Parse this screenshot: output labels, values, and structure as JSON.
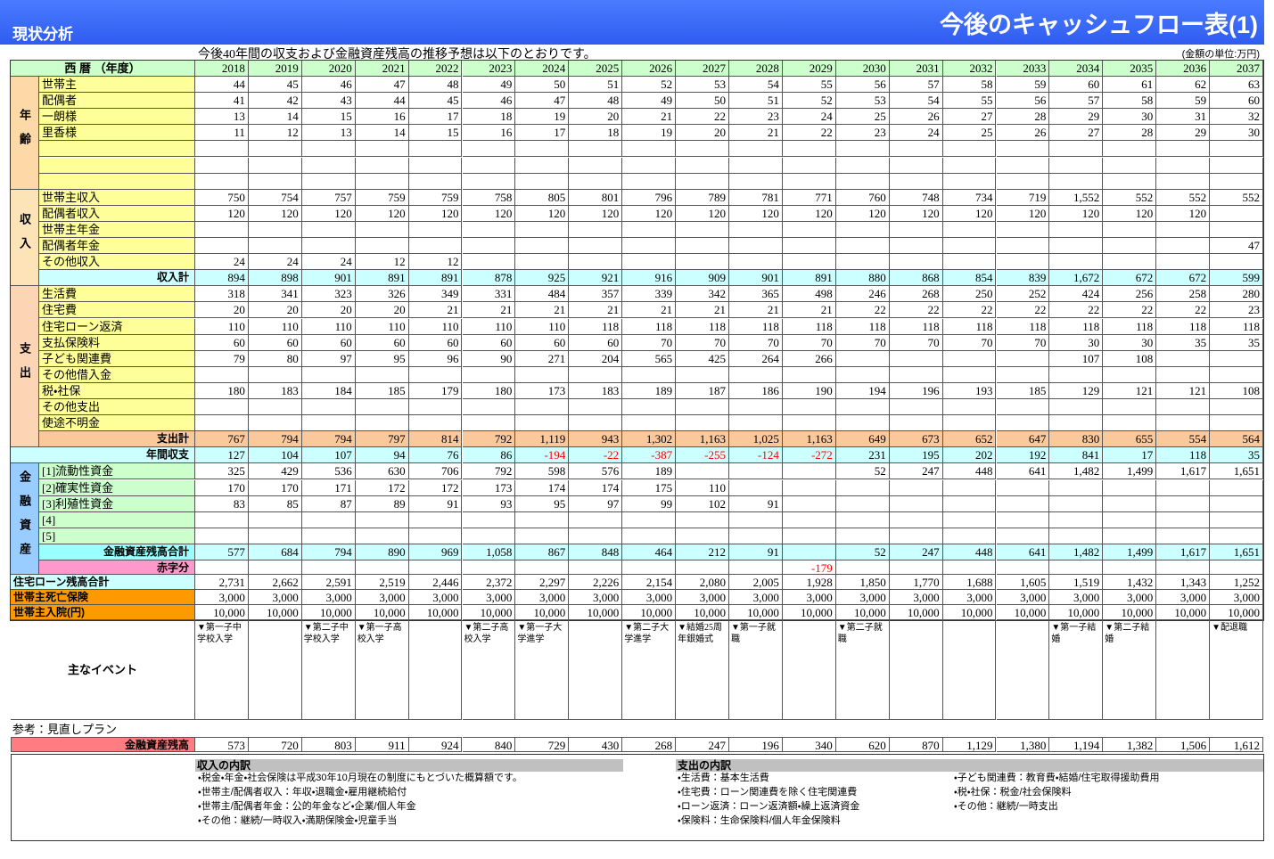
{
  "header": {
    "left": "現状分析",
    "right": "今後のキャッシュフロー表(1)"
  },
  "intro": "今後40年間の収支および金融資産残高の推移予想は以下のとおりです。",
  "unit": "(金額の単位:万円)",
  "table": {
    "year_header": "西 暦 （年度）",
    "years": [
      2018,
      2019,
      2020,
      2021,
      2022,
      2023,
      2024,
      2025,
      2026,
      2027,
      2028,
      2029,
      2030,
      2031,
      2032,
      2033,
      2034,
      2035,
      2036,
      2037
    ],
    "age": {
      "label": "年齢",
      "rows": [
        {
          "label": "世帯主",
          "values": [
            44,
            45,
            46,
            47,
            48,
            49,
            50,
            51,
            52,
            53,
            54,
            55,
            56,
            57,
            58,
            59,
            60,
            61,
            62,
            63
          ]
        },
        {
          "label": "配偶者",
          "values": [
            41,
            42,
            43,
            44,
            45,
            46,
            47,
            48,
            49,
            50,
            51,
            52,
            53,
            54,
            55,
            56,
            57,
            58,
            59,
            60
          ]
        },
        {
          "label": "一朗様",
          "values": [
            13,
            14,
            15,
            16,
            17,
            18,
            19,
            20,
            21,
            22,
            23,
            24,
            25,
            26,
            27,
            28,
            29,
            30,
            31,
            32
          ]
        },
        {
          "label": "里香様",
          "values": [
            11,
            12,
            13,
            14,
            15,
            16,
            17,
            18,
            19,
            20,
            21,
            22,
            23,
            24,
            25,
            26,
            27,
            28,
            29,
            30
          ]
        },
        {
          "label": null,
          "values": [
            null,
            null,
            null,
            null,
            null,
            null,
            null,
            null,
            null,
            null,
            null,
            null,
            null,
            null,
            null,
            null,
            null,
            null,
            null,
            null
          ]
        },
        {
          "label": null,
          "values": [
            null,
            null,
            null,
            null,
            null,
            null,
            null,
            null,
            null,
            null,
            null,
            null,
            null,
            null,
            null,
            null,
            null,
            null,
            null,
            null
          ]
        },
        {
          "label": null,
          "values": [
            null,
            null,
            null,
            null,
            null,
            null,
            null,
            null,
            null,
            null,
            null,
            null,
            null,
            null,
            null,
            null,
            null,
            null,
            null,
            null
          ]
        }
      ]
    },
    "income": {
      "label": "収入",
      "rows": [
        {
          "label": "世帯主収入",
          "values": [
            750,
            754,
            757,
            759,
            759,
            758,
            805,
            801,
            796,
            789,
            781,
            771,
            760,
            748,
            734,
            719,
            "1,552",
            552,
            552,
            552
          ]
        },
        {
          "label": "配偶者収入",
          "values": [
            120,
            120,
            120,
            120,
            120,
            120,
            120,
            120,
            120,
            120,
            120,
            120,
            120,
            120,
            120,
            120,
            120,
            120,
            120,
            null
          ]
        },
        {
          "label": "世帯主年金",
          "values": [
            null,
            null,
            null,
            null,
            null,
            null,
            null,
            null,
            null,
            null,
            null,
            null,
            null,
            null,
            null,
            null,
            null,
            null,
            null,
            null
          ]
        },
        {
          "label": "配偶者年金",
          "values": [
            null,
            null,
            null,
            null,
            null,
            null,
            null,
            null,
            null,
            null,
            null,
            null,
            null,
            null,
            null,
            null,
            null,
            null,
            null,
            47
          ]
        },
        {
          "label": "その他収入",
          "values": [
            24,
            24,
            24,
            12,
            12,
            null,
            null,
            null,
            null,
            null,
            null,
            null,
            null,
            null,
            null,
            null,
            null,
            null,
            null,
            null
          ]
        }
      ],
      "total": {
        "label": "収入計",
        "values": [
          894,
          898,
          901,
          891,
          891,
          878,
          925,
          921,
          916,
          909,
          901,
          891,
          880,
          868,
          854,
          839,
          "1,672",
          672,
          672,
          599
        ]
      }
    },
    "expense": {
      "label": "支出",
      "rows": [
        {
          "label": "生活費",
          "values": [
            318,
            341,
            323,
            326,
            349,
            331,
            484,
            357,
            339,
            342,
            365,
            498,
            246,
            268,
            250,
            252,
            424,
            256,
            258,
            280
          ]
        },
        {
          "label": "住宅費",
          "values": [
            20,
            20,
            20,
            20,
            21,
            21,
            21,
            21,
            21,
            21,
            21,
            21,
            22,
            22,
            22,
            22,
            22,
            22,
            22,
            23
          ]
        },
        {
          "label": "住宅ローン返済",
          "values": [
            110,
            110,
            110,
            110,
            110,
            110,
            110,
            118,
            118,
            118,
            118,
            118,
            118,
            118,
            118,
            118,
            118,
            118,
            118,
            118
          ]
        },
        {
          "label": "支払保険料",
          "values": [
            60,
            60,
            60,
            60,
            60,
            60,
            60,
            60,
            70,
            70,
            70,
            70,
            70,
            70,
            70,
            70,
            30,
            30,
            35,
            35
          ]
        },
        {
          "label": "子ども関連費",
          "values": [
            79,
            80,
            97,
            95,
            96,
            90,
            271,
            204,
            565,
            425,
            264,
            266,
            null,
            null,
            null,
            null,
            107,
            108,
            null,
            null
          ]
        },
        {
          "label": "その他借入金",
          "values": [
            null,
            null,
            null,
            null,
            null,
            null,
            null,
            null,
            null,
            null,
            null,
            null,
            null,
            null,
            null,
            null,
            null,
            null,
            null,
            null
          ]
        },
        {
          "label": "税・社保",
          "values": [
            180,
            183,
            184,
            185,
            179,
            180,
            173,
            183,
            189,
            187,
            186,
            190,
            194,
            196,
            193,
            185,
            129,
            121,
            121,
            108
          ]
        },
        {
          "label": "その他支出",
          "values": [
            null,
            null,
            null,
            null,
            null,
            null,
            null,
            null,
            null,
            null,
            null,
            null,
            null,
            null,
            null,
            null,
            null,
            null,
            null,
            null
          ]
        },
        {
          "label": "使途不明金",
          "values": [
            null,
            null,
            null,
            null,
            null,
            null,
            null,
            null,
            null,
            null,
            null,
            null,
            null,
            null,
            null,
            null,
            null,
            null,
            null,
            null
          ]
        }
      ],
      "total": {
        "label": "支出計",
        "values": [
          767,
          794,
          794,
          797,
          814,
          792,
          "1,119",
          943,
          "1,302",
          "1,163",
          "1,025",
          "1,163",
          649,
          673,
          652,
          647,
          830,
          655,
          554,
          564
        ]
      }
    },
    "balance": {
      "label": "年間収支",
      "values": [
        127,
        104,
        107,
        94,
        76,
        86,
        -194,
        -22,
        -387,
        -255,
        -124,
        -272,
        231,
        195,
        202,
        192,
        841,
        17,
        118,
        35
      ]
    },
    "assets": {
      "label": "金融資産",
      "rows": [
        {
          "label": "[1]流動性資金",
          "values": [
            325,
            429,
            536,
            630,
            706,
            792,
            598,
            576,
            189,
            null,
            null,
            null,
            52,
            247,
            448,
            641,
            "1,482",
            "1,499",
            "1,617",
            "1,651"
          ]
        },
        {
          "label": "[2]確実性資金",
          "values": [
            170,
            170,
            171,
            172,
            172,
            173,
            174,
            174,
            175,
            110,
            null,
            null,
            null,
            null,
            null,
            null,
            null,
            null,
            null,
            null
          ]
        },
        {
          "label": "[3]利殖性資金",
          "values": [
            83,
            85,
            87,
            89,
            91,
            93,
            95,
            97,
            99,
            102,
            91,
            null,
            null,
            null,
            null,
            null,
            null,
            null,
            null,
            null
          ]
        },
        {
          "label": "[4]",
          "values": [
            null,
            null,
            null,
            null,
            null,
            null,
            null,
            null,
            null,
            null,
            null,
            null,
            null,
            null,
            null,
            null,
            null,
            null,
            null,
            null
          ]
        },
        {
          "label": "[5]",
          "values": [
            null,
            null,
            null,
            null,
            null,
            null,
            null,
            null,
            null,
            null,
            null,
            null,
            null,
            null,
            null,
            null,
            null,
            null,
            null,
            null
          ]
        }
      ],
      "total": {
        "label": "金融資産残高合計",
        "values": [
          577,
          684,
          794,
          890,
          969,
          "1,058",
          867,
          848,
          464,
          212,
          91,
          null,
          52,
          247,
          448,
          641,
          "1,482",
          "1,499",
          "1,617",
          "1,651"
        ]
      },
      "deficit": {
        "label": "赤字分",
        "values": [
          null,
          null,
          null,
          null,
          null,
          null,
          null,
          null,
          null,
          null,
          null,
          -179,
          null,
          null,
          null,
          null,
          null,
          null,
          null,
          null
        ]
      }
    },
    "loan": {
      "label": "住宅ローン残高合計",
      "values": [
        "2,731",
        "2,662",
        "2,591",
        "2,519",
        "2,446",
        "2,372",
        "2,297",
        "2,226",
        "2,154",
        "2,080",
        "2,005",
        "1,928",
        "1,850",
        "1,770",
        "1,688",
        "1,605",
        "1,519",
        "1,432",
        "1,343",
        "1,252"
      ]
    },
    "death_insurance": {
      "label": "世帯主死亡保険",
      "values": [
        "3,000",
        "3,000",
        "3,000",
        "3,000",
        "3,000",
        "3,000",
        "3,000",
        "3,000",
        "3,000",
        "3,000",
        "3,000",
        "3,000",
        "3,000",
        "3,000",
        "3,000",
        "3,000",
        "3,000",
        "3,000",
        "3,000",
        "3,000"
      ]
    },
    "hospital": {
      "label": "世帯主入院(円)",
      "values": [
        "10,000",
        "10,000",
        "10,000",
        "10,000",
        "10,000",
        "10,000",
        "10,000",
        "10,000",
        "10,000",
        "10,000",
        "10,000",
        "10,000",
        "10,000",
        "10,000",
        "10,000",
        "10,000",
        "10,000",
        "10,000",
        "10,000",
        "10,000"
      ]
    },
    "events": {
      "label": "主なイベント",
      "values": [
        "▼第一子中学校入学",
        null,
        "▼第二子中学校入学",
        "▼第一子高校入学",
        null,
        "▼第二子高校入学",
        "▼第一子大学進学",
        null,
        "▼第二子大学進学",
        "▼結婚25周年銀婚式",
        "▼第一子就職",
        null,
        "▼第二子就職",
        null,
        null,
        null,
        "▼第一子結婚",
        "▼第二子結婚",
        null,
        "▼配退職"
      ]
    }
  },
  "review": {
    "title": "参考：見直しプラン",
    "row": {
      "label": "金融資産残高",
      "values": [
        573,
        720,
        803,
        911,
        924,
        840,
        729,
        430,
        268,
        247,
        196,
        340,
        620,
        870,
        "1,129",
        "1,380",
        "1,194",
        "1,382",
        "1,506",
        "1,612"
      ]
    }
  },
  "notes": {
    "income": {
      "title": "収入の内訳",
      "lines": [
        "・税金・年金・社会保険は平成30年10月現在の制度にもとづいた概算額です。",
        "・世帯主/配偶者収入：年収・退職金・雇用継続給付",
        "・世帯主/配偶者年金：公的年金など・企業/個人年金",
        "・その他：継続/一時収入・満期保険金・児童手当"
      ]
    },
    "expense": {
      "title": "支出の内訳",
      "left": [
        "・生活費：基本生活費",
        "・住宅費：ローン関連費を除く住宅関連費",
        "・ローン返済：ローン返済額・繰上返済資金",
        "・保険料：生命保険料/個人年金保険料"
      ],
      "right": [
        "・子ども関連費：教育費・結婚/住宅取得援助費用",
        "・税・社保：税金/社会保険料",
        "・その他：継続/一時支出"
      ]
    }
  }
}
